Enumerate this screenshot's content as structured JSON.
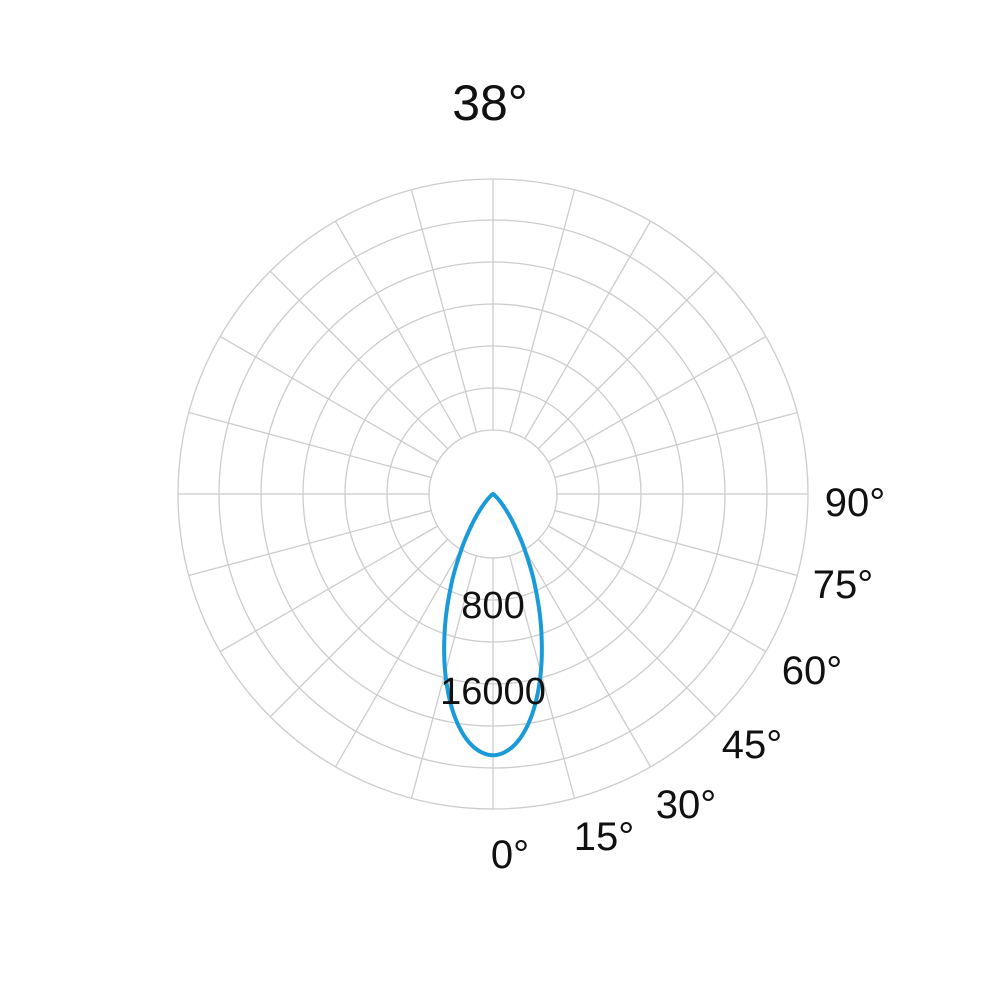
{
  "chart_data": {
    "type": "polar",
    "title": "38°",
    "angle_labels": [
      "0°",
      "15°",
      "30°",
      "45°",
      "60°",
      "75°",
      "90°"
    ],
    "radial_labels": [
      "800",
      "16000"
    ],
    "grid": true,
    "angle_step_deg": 15,
    "series": [
      {
        "color": "#1a9ad9",
        "angles_deg": [
          0,
          5,
          10,
          15,
          20,
          25,
          30,
          35,
          40,
          45,
          50,
          60,
          70,
          80,
          90
        ],
        "values": [
          22000,
          21180,
          18880,
          15550,
          11810,
          8230,
          5210,
          2990,
          1540,
          690,
          260,
          40,
          0,
          0,
          0
        ]
      }
    ],
    "colors": {
      "grid": "#cccccc",
      "curve": "#1a9ad9",
      "text": "#111111"
    }
  }
}
